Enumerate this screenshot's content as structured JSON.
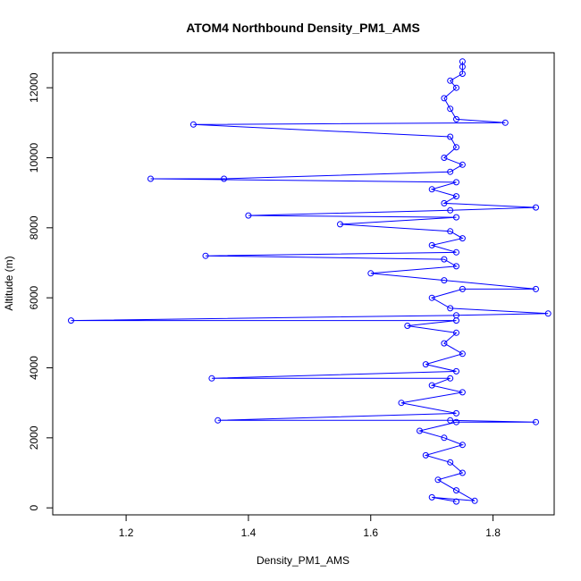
{
  "chart_data": {
    "type": "scatter",
    "title": "ATOM4 Northbound Density_PM1_AMS",
    "xlabel": "Density_PM1_AMS",
    "ylabel": "Altitude (m)",
    "xlim": [
      1.08,
      1.9
    ],
    "ylim": [
      -200,
      13000
    ],
    "x_ticks": [
      1.2,
      1.4,
      1.6,
      1.8
    ],
    "y_ticks": [
      0,
      2000,
      4000,
      6000,
      8000,
      10000,
      12000
    ],
    "x_tick_labels": [
      "1.2",
      "1.4",
      "1.6",
      "1.8"
    ],
    "y_tick_labels": [
      "0",
      "2000",
      "4000",
      "6000",
      "8000",
      "10000",
      "12000"
    ],
    "grid": false,
    "legend": "none",
    "point_style": "open-circle",
    "connected": true,
    "series_color": "#0000ff",
    "series": [
      {
        "points": [
          [
            1.74,
            180
          ],
          [
            1.7,
            300
          ],
          [
            1.77,
            200
          ],
          [
            1.74,
            500
          ],
          [
            1.71,
            800
          ],
          [
            1.75,
            1000
          ],
          [
            1.73,
            1300
          ],
          [
            1.69,
            1500
          ],
          [
            1.75,
            1800
          ],
          [
            1.72,
            2000
          ],
          [
            1.68,
            2200
          ],
          [
            1.74,
            2450
          ],
          [
            1.87,
            2450
          ],
          [
            1.73,
            2500
          ],
          [
            1.35,
            2500
          ],
          [
            1.74,
            2700
          ],
          [
            1.65,
            3000
          ],
          [
            1.75,
            3300
          ],
          [
            1.7,
            3500
          ],
          [
            1.73,
            3700
          ],
          [
            1.34,
            3700
          ],
          [
            1.74,
            3900
          ],
          [
            1.69,
            4100
          ],
          [
            1.75,
            4400
          ],
          [
            1.72,
            4700
          ],
          [
            1.74,
            5000
          ],
          [
            1.66,
            5200
          ],
          [
            1.74,
            5350
          ],
          [
            1.11,
            5350
          ],
          [
            1.74,
            5500
          ],
          [
            1.89,
            5550
          ],
          [
            1.73,
            5700
          ],
          [
            1.7,
            6000
          ],
          [
            1.75,
            6250
          ],
          [
            1.87,
            6250
          ],
          [
            1.72,
            6500
          ],
          [
            1.6,
            6700
          ],
          [
            1.74,
            6900
          ],
          [
            1.72,
            7100
          ],
          [
            1.33,
            7200
          ],
          [
            1.74,
            7300
          ],
          [
            1.7,
            7500
          ],
          [
            1.75,
            7700
          ],
          [
            1.73,
            7900
          ],
          [
            1.55,
            8100
          ],
          [
            1.74,
            8300
          ],
          [
            1.4,
            8350
          ],
          [
            1.73,
            8500
          ],
          [
            1.87,
            8580
          ],
          [
            1.72,
            8700
          ],
          [
            1.74,
            8900
          ],
          [
            1.7,
            9100
          ],
          [
            1.74,
            9300
          ],
          [
            1.24,
            9400
          ],
          [
            1.36,
            9400
          ],
          [
            1.73,
            9600
          ],
          [
            1.75,
            9800
          ],
          [
            1.72,
            10000
          ],
          [
            1.74,
            10300
          ],
          [
            1.73,
            10600
          ],
          [
            1.31,
            10950
          ],
          [
            1.82,
            11000
          ],
          [
            1.74,
            11100
          ],
          [
            1.73,
            11400
          ],
          [
            1.72,
            11700
          ],
          [
            1.74,
            12000
          ],
          [
            1.73,
            12200
          ],
          [
            1.75,
            12400
          ],
          [
            1.75,
            12600
          ],
          [
            1.75,
            12750
          ]
        ]
      }
    ]
  }
}
